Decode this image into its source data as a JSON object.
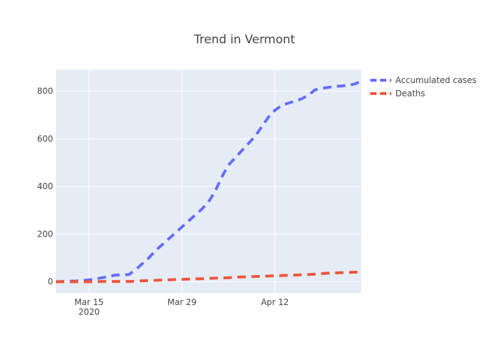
{
  "chart_data": {
    "type": "line",
    "title": "Trend in Vermont",
    "xlabel": "",
    "ylabel": "",
    "x": [
      "2020-03-10",
      "2020-03-11",
      "2020-03-12",
      "2020-03-13",
      "2020-03-14",
      "2020-03-15",
      "2020-03-16",
      "2020-03-17",
      "2020-03-18",
      "2020-03-19",
      "2020-03-20",
      "2020-03-21",
      "2020-03-22",
      "2020-03-23",
      "2020-03-24",
      "2020-03-25",
      "2020-03-26",
      "2020-03-27",
      "2020-03-28",
      "2020-03-29",
      "2020-03-30",
      "2020-03-31",
      "2020-04-01",
      "2020-04-02",
      "2020-04-03",
      "2020-04-04",
      "2020-04-05",
      "2020-04-06",
      "2020-04-07",
      "2020-04-08",
      "2020-04-09",
      "2020-04-10",
      "2020-04-11",
      "2020-04-12",
      "2020-04-13",
      "2020-04-14",
      "2020-04-15",
      "2020-04-16",
      "2020-04-17",
      "2020-04-18",
      "2020-04-19",
      "2020-04-20",
      "2020-04-21",
      "2020-04-22",
      "2020-04-23",
      "2020-04-24",
      "2020-04-25"
    ],
    "series": [
      {
        "name": "Accumulated cases",
        "color": "#636efa",
        "values": [
          0,
          1,
          2,
          3,
          5,
          8,
          12,
          17,
          22,
          28,
          29,
          30,
          50,
          75,
          100,
          130,
          155,
          180,
          205,
          230,
          255,
          280,
          305,
          335,
          380,
          440,
          490,
          520,
          550,
          580,
          610,
          650,
          690,
          720,
          740,
          750,
          758,
          768,
          782,
          805,
          812,
          816,
          820,
          822,
          825,
          830,
          842
        ]
      },
      {
        "name": "Deaths",
        "color": "#ef553b",
        "values": [
          0,
          0,
          0,
          0,
          0,
          0,
          0,
          1,
          1,
          1,
          1,
          1,
          2,
          4,
          5,
          6,
          7,
          8,
          9,
          10,
          11,
          12,
          13,
          14,
          15,
          16,
          17,
          19,
          20,
          21,
          22,
          23,
          24,
          25,
          26,
          27,
          28,
          29,
          30,
          32,
          34,
          36,
          37,
          38,
          39,
          40,
          41
        ]
      }
    ],
    "xticks": [
      {
        "date": "2020-03-15",
        "label": "Mar 15",
        "sublabel": "2020"
      },
      {
        "date": "2020-03-29",
        "label": "Mar 29",
        "sublabel": ""
      },
      {
        "date": "2020-04-12",
        "label": "Apr 12",
        "sublabel": ""
      }
    ],
    "yticks": [
      0,
      200,
      400,
      600,
      800
    ],
    "ylim": [
      -48,
      890
    ],
    "xlim": [
      "2020-03-10",
      "2020-04-25"
    ],
    "grid": true,
    "legend_position": "top-right",
    "plot_bg": "#e5ecf6",
    "grid_color": "#ffffff"
  }
}
